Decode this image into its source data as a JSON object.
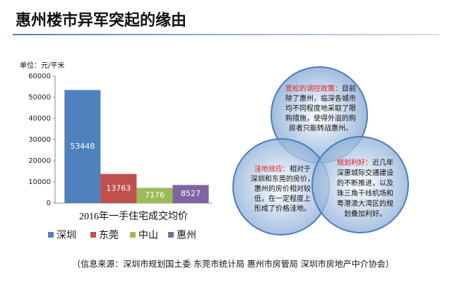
{
  "title": "惠州楼市异军突起的缘由",
  "chart_data": {
    "type": "bar",
    "unit": "单位：元/平米",
    "categories": [
      "2016年一手住宅成交均价"
    ],
    "series": [
      {
        "name": "深圳",
        "color": "#4f81bd",
        "values": [
          53448
        ]
      },
      {
        "name": "东莞",
        "color": "#c0504d",
        "values": [
          13763
        ]
      },
      {
        "name": "中山",
        "color": "#9bbb59",
        "values": [
          7176
        ]
      },
      {
        "name": "惠州",
        "color": "#8064a2",
        "values": [
          8527
        ]
      }
    ],
    "ylim": [
      0,
      60000
    ],
    "yticks": [
      0,
      10000,
      20000,
      30000,
      40000,
      50000,
      60000
    ],
    "grid": false,
    "legend": "bottom"
  },
  "diagram": {
    "circles": [
      {
        "heading": "宽松的调控政策：",
        "lines": [
          "目前",
          "除了惠州，临深各城市",
          "均不同程度地采取了限",
          "购措施，使得外溢的购",
          "房者只能转战惠州。"
        ]
      },
      {
        "heading": "洼地效应：",
        "lines": [
          "相对于",
          "深圳和东莞的房价，",
          "惠州的房价相对较",
          "低，在一定程度上",
          "形成了价格洼地。"
        ]
      },
      {
        "heading": "规划利好：",
        "lines": [
          "近几年",
          "深惠城际交通建设",
          "的不断推进，以及",
          "珠三角干线机场和",
          "粤港澳大湾区的规",
          "划叠加利好。"
        ]
      }
    ]
  },
  "source": "（信息来源：深圳市规划国土委  东莞市统计局  惠州市房管局  深圳市房地产中介协会）"
}
